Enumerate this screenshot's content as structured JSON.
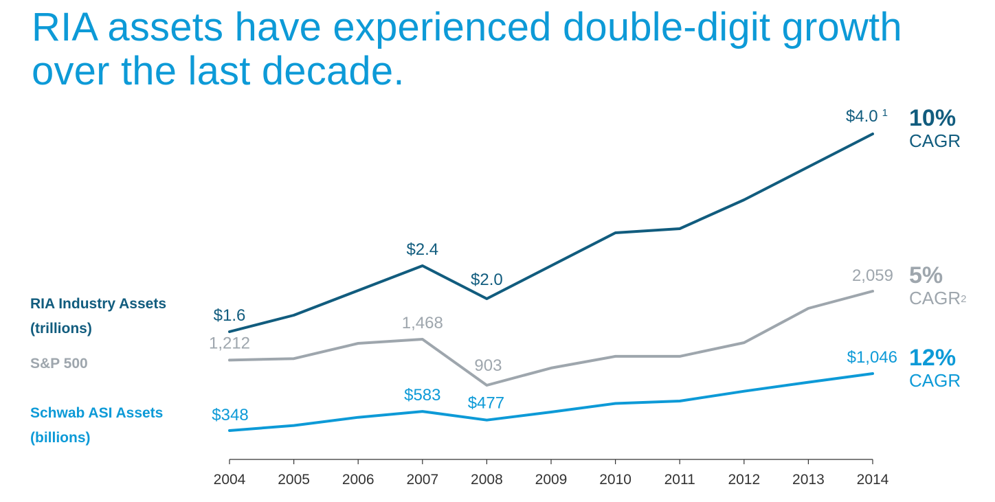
{
  "title": {
    "line1": "RIA assets have experienced double-digit growth",
    "line2": "over the last decade."
  },
  "legend": {
    "ria_line1": "RIA Industry Assets",
    "ria_line2": "(trillions)",
    "sp": "S&P 500",
    "schwab_line1": "Schwab ASI Assets",
    "schwab_line2": "(billions)"
  },
  "cagr": {
    "ria_pct": "10%",
    "ria_label": "CAGR",
    "sp_pct": "5%",
    "sp_label": "CAGR",
    "sp_footnote": "2",
    "schwab_pct": "12%",
    "schwab_label": "CAGR"
  },
  "colors": {
    "ria": "#115c7e",
    "sp": "#9ea6ad",
    "schwab": "#0d9ad7",
    "axis": "#333333"
  },
  "chart_data": {
    "type": "line",
    "x": [
      "2004",
      "2005",
      "2006",
      "2007",
      "2008",
      "2009",
      "2010",
      "2011",
      "2012",
      "2013",
      "2014"
    ],
    "series": [
      {
        "name": "RIA Industry Assets (trillions)",
        "key": "ria",
        "unit": "trillions USD",
        "values": [
          1.6,
          1.8,
          2.1,
          2.4,
          2.0,
          2.4,
          2.8,
          2.85,
          3.2,
          3.6,
          4.0
        ],
        "labels": [
          {
            "i": 0,
            "text": "$1.6"
          },
          {
            "i": 3,
            "text": "$2.4"
          },
          {
            "i": 4,
            "text": "$2.0"
          },
          {
            "i": 10,
            "text": "$4.0",
            "footnote": "1"
          }
        ]
      },
      {
        "name": "S&P 500",
        "key": "sp",
        "unit": "index",
        "values": [
          1212,
          1230,
          1418,
          1468,
          903,
          1115,
          1258,
          1258,
          1426,
          1848,
          2059
        ],
        "labels": [
          {
            "i": 0,
            "text": "1,212"
          },
          {
            "i": 3,
            "text": "1,468"
          },
          {
            "i": 4,
            "text": "903"
          },
          {
            "i": 10,
            "text": "2,059"
          }
        ]
      },
      {
        "name": "Schwab ASI Assets (billions)",
        "key": "schwab",
        "unit": "billions USD",
        "values": [
          348,
          410,
          510,
          583,
          477,
          575,
          680,
          710,
          830,
          940,
          1046
        ],
        "labels": [
          {
            "i": 0,
            "text": "$348"
          },
          {
            "i": 3,
            "text": "$583"
          },
          {
            "i": 4,
            "text": "$477"
          },
          {
            "i": 10,
            "text": "$1,046"
          }
        ]
      }
    ]
  }
}
